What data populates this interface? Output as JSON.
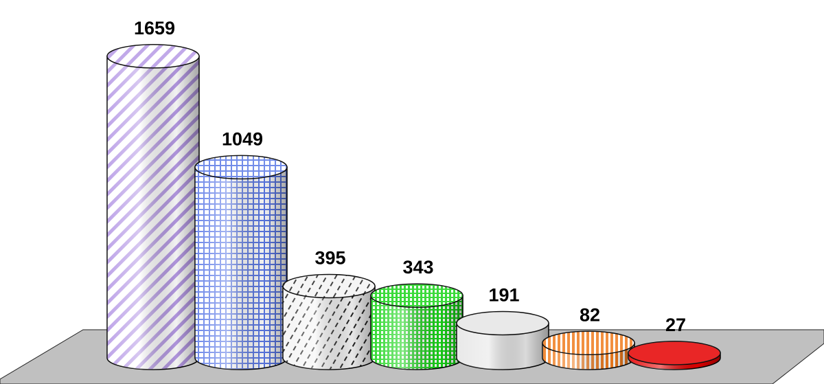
{
  "chart_data": {
    "type": "bar",
    "style": "3d-cylinder",
    "title": "",
    "xlabel": "",
    "ylabel": "",
    "ylim": [
      0,
      1700
    ],
    "grid": false,
    "legend": "none",
    "values": [
      1659,
      1049,
      395,
      343,
      191,
      82,
      27
    ],
    "data_labels": [
      "1659",
      "1049",
      "395",
      "343",
      "191",
      "82",
      "27"
    ],
    "colors": [
      "#b79be6",
      "#5a78e6",
      "#c8c8c8",
      "#19d419",
      "#e6e6e6",
      "#f07c1e",
      "#e60000"
    ],
    "patterns": [
      "diagonal-stripes",
      "grid",
      "dashes",
      "horizontal-stripes",
      "plain",
      "vertical-stripes",
      "plain"
    ],
    "floor_color": "#c0c0c0"
  }
}
